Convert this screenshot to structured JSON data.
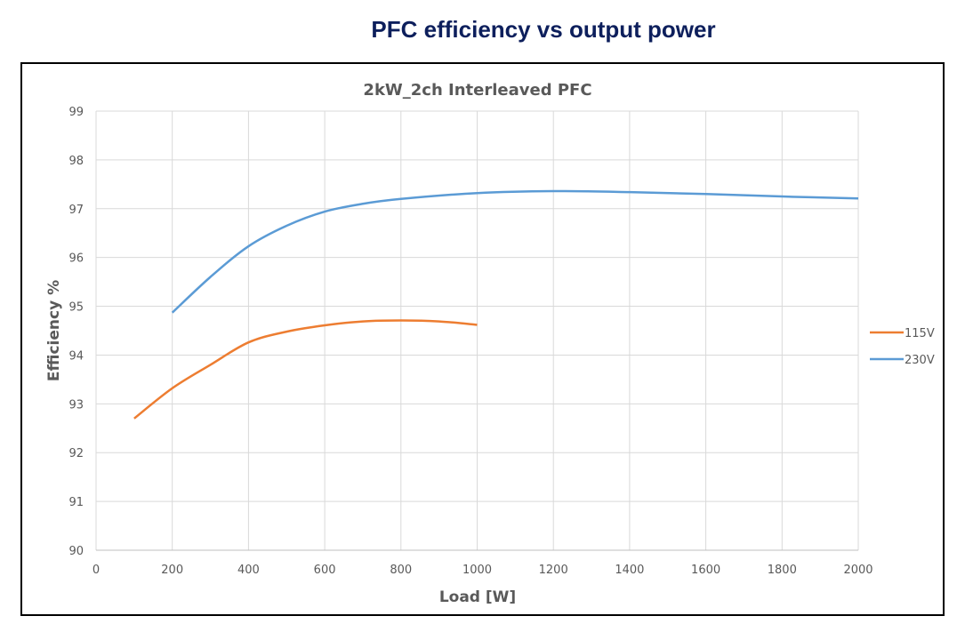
{
  "header": {
    "title": "PFC efficiency vs output power"
  },
  "chart_data": {
    "type": "line",
    "title": "2kW_2ch Interleaved PFC",
    "xlabel": "Load [W]",
    "ylabel": "Efficiency  %",
    "xlim": [
      0,
      2000
    ],
    "ylim": [
      90,
      99
    ],
    "xticks": [
      0,
      200,
      400,
      600,
      800,
      1000,
      1200,
      1400,
      1600,
      1800,
      2000
    ],
    "yticks": [
      90,
      91,
      92,
      93,
      94,
      95,
      96,
      97,
      98,
      99
    ],
    "grid": true,
    "legend": "right",
    "series": [
      {
        "name": "115V",
        "color": "#ed7d31",
        "x": [
          100,
          200,
          300,
          400,
          500,
          600,
          700,
          800,
          900,
          1000
        ],
        "y": [
          92.7,
          93.32,
          93.8,
          94.26,
          94.48,
          94.61,
          94.69,
          94.71,
          94.69,
          94.62
        ]
      },
      {
        "name": "230V",
        "color": "#5b9bd5",
        "x": [
          200,
          300,
          400,
          500,
          600,
          700,
          800,
          1000,
          1200,
          1400,
          1600,
          1800,
          2000
        ],
        "y": [
          94.87,
          95.6,
          96.23,
          96.65,
          96.94,
          97.1,
          97.2,
          97.32,
          97.36,
          97.34,
          97.3,
          97.25,
          97.21
        ]
      }
    ]
  }
}
